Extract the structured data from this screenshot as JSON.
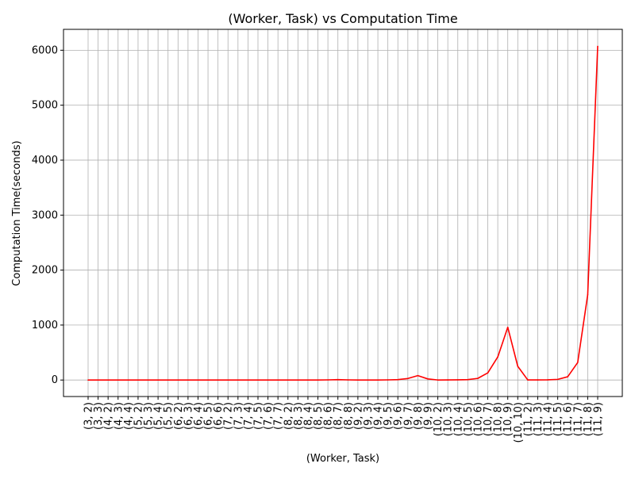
{
  "chart_data": {
    "type": "line",
    "title": "(Worker, Task) vs Computation Time",
    "xlabel": "(Worker, Task)",
    "ylabel": "Computation Time(seconds)",
    "ylim": [
      -300,
      6380
    ],
    "yticks": [
      0,
      1000,
      2000,
      3000,
      4000,
      5000,
      6000
    ],
    "grid": true,
    "line_color": "#ff0000",
    "categories": [
      "(3, 2)",
      "(3, 3)",
      "(4, 2)",
      "(4, 3)",
      "(4, 4)",
      "(5, 2)",
      "(5, 3)",
      "(5, 4)",
      "(5, 5)",
      "(6, 2)",
      "(6, 3)",
      "(6, 4)",
      "(6, 5)",
      "(6, 6)",
      "(7, 2)",
      "(7, 3)",
      "(7, 4)",
      "(7, 5)",
      "(7, 6)",
      "(7, 7)",
      "(8, 2)",
      "(8, 3)",
      "(8, 4)",
      "(8, 5)",
      "(8, 6)",
      "(8, 7)",
      "(8, 8)",
      "(9, 2)",
      "(9, 3)",
      "(9, 4)",
      "(9, 5)",
      "(9, 6)",
      "(9, 7)",
      "(9, 8)",
      "(9, 9)",
      "(10, 2)",
      "(10, 3)",
      "(10, 4)",
      "(10, 5)",
      "(10, 6)",
      "(10, 7)",
      "(10, 8)",
      "(10, 9)",
      "(10, 10)",
      "(11, 2)",
      "(11, 3)",
      "(11, 4)",
      "(11, 5)",
      "(11, 6)",
      "(11, 7)",
      "(11, 8)",
      "(11, 9)"
    ],
    "values": [
      0,
      0,
      0,
      0,
      0,
      0,
      0,
      0,
      0,
      0,
      0,
      0,
      0,
      0,
      0,
      0,
      0,
      0,
      0,
      0,
      0,
      0,
      0,
      1,
      3,
      8,
      3,
      0,
      0,
      1,
      3,
      8,
      28,
      80,
      20,
      1,
      2,
      4,
      8,
      30,
      130,
      420,
      960,
      250,
      2,
      2,
      4,
      12,
      60,
      320,
      1550,
      6070
    ]
  }
}
